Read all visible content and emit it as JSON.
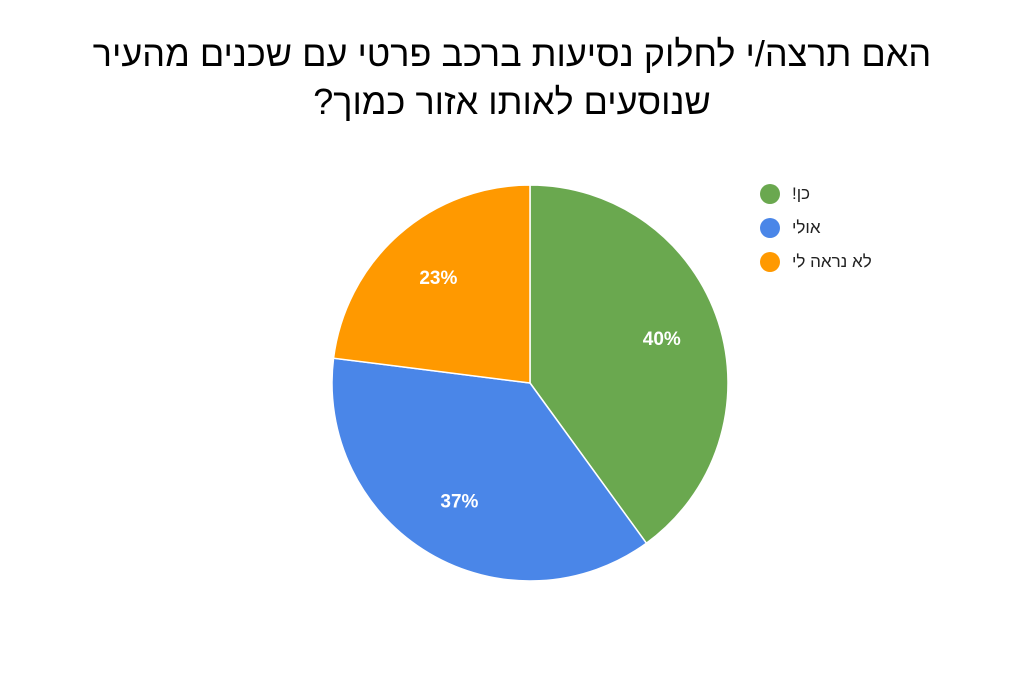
{
  "title": {
    "line1": "האם תרצה/י לחלוק נסיעות ברכב פרטי עם שכנים מהעיר",
    "line2": "שנוסעים לאותו אזור כמוך?"
  },
  "chart_data": {
    "type": "pie",
    "slices": [
      {
        "name": "כן!",
        "value": 40,
        "label": "40%",
        "color": "#6aa84f"
      },
      {
        "name": "אולי",
        "value": 37,
        "label": "37%",
        "color": "#4a86e8"
      },
      {
        "name": "לא נראה לי",
        "value": 23,
        "label": "23%",
        "color": "#ff9900"
      }
    ],
    "legend_position": "right"
  }
}
